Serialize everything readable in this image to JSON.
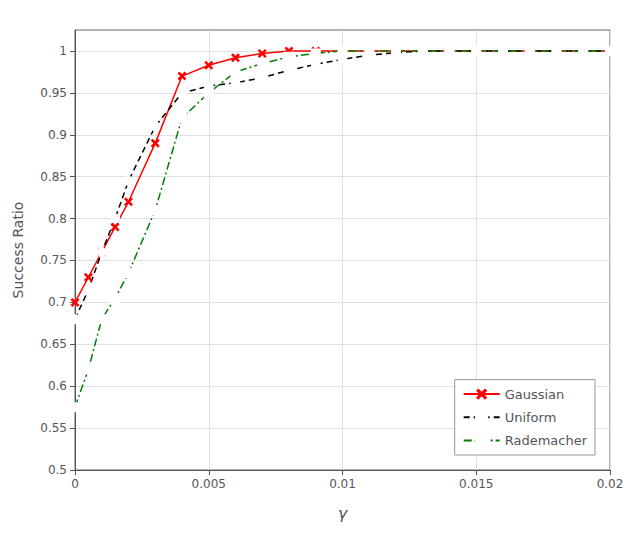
{
  "chart_data": {
    "type": "line",
    "xlabel": "γ",
    "ylabel": "Success Ratio",
    "xlim": [
      0,
      0.02
    ],
    "ylim": [
      0.5,
      1.025
    ],
    "xticks": [
      0,
      0.005,
      0.01,
      0.015,
      0.02
    ],
    "yticks": [
      0.5,
      0.55,
      0.6,
      0.65,
      0.7,
      0.75,
      0.8,
      0.85,
      0.9,
      0.95,
      1.0
    ],
    "grid": true,
    "legend": "lower right",
    "series": [
      {
        "name": "Gaussian",
        "color": "#ff0000",
        "marker": "x",
        "line_style": "solid",
        "x": [
          0,
          0.0005,
          0.001,
          0.0015,
          0.002,
          0.003,
          0.004,
          0.005,
          0.006,
          0.007,
          0.008,
          0.009,
          0.01,
          0.011,
          0.012,
          0.013,
          0.014,
          0.015,
          0.016,
          0.017,
          0.018,
          0.019,
          0.02
        ],
        "values": [
          0.7,
          0.73,
          0.76,
          0.79,
          0.82,
          0.89,
          0.97,
          0.983,
          0.992,
          0.997,
          1.0,
          1.0,
          1.0,
          1.0,
          1.0,
          1.0,
          1.0,
          1.0,
          1.0,
          1.0,
          1.0,
          1.0,
          1.0
        ]
      },
      {
        "name": "Uniform",
        "color": "#000000",
        "marker": "o",
        "line_style": "dashed",
        "x": [
          0,
          0.0005,
          0.001,
          0.0015,
          0.002,
          0.003,
          0.004,
          0.005,
          0.006,
          0.007,
          0.008,
          0.009,
          0.01,
          0.011,
          0.012,
          0.013,
          0.014,
          0.015,
          0.016,
          0.017,
          0.018,
          0.019,
          0.02
        ],
        "values": [
          0.68,
          0.715,
          0.76,
          0.8,
          0.845,
          0.91,
          0.95,
          0.958,
          0.962,
          0.968,
          0.977,
          0.984,
          0.99,
          0.995,
          0.998,
          1.0,
          1.0,
          1.0,
          1.0,
          1.0,
          1.0,
          1.0,
          1.0
        ]
      },
      {
        "name": "Rademacher",
        "color": "#007f00",
        "marker": "s",
        "line_style": "dashdot",
        "x": [
          0,
          0.0005,
          0.001,
          0.0015,
          0.002,
          0.003,
          0.004,
          0.005,
          0.006,
          0.007,
          0.008,
          0.009,
          0.01,
          0.011,
          0.012,
          0.013,
          0.014,
          0.015,
          0.016,
          0.017,
          0.018,
          0.019,
          0.02
        ],
        "values": [
          0.575,
          0.62,
          0.68,
          0.705,
          0.735,
          0.81,
          0.92,
          0.95,
          0.975,
          0.985,
          0.993,
          0.997,
          1.0,
          1.0,
          1.0,
          1.0,
          1.0,
          1.0,
          1.0,
          1.0,
          1.0,
          1.0,
          1.0
        ]
      }
    ]
  }
}
